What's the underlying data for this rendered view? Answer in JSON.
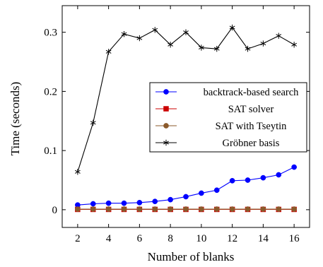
{
  "chart_data": {
    "type": "line",
    "title": "",
    "xlabel": "Number of blanks",
    "ylabel": "Time (seconds)",
    "xlim": [
      1,
      17
    ],
    "ylim": [
      -0.03,
      0.345
    ],
    "xticks": [
      2,
      4,
      6,
      8,
      10,
      12,
      14,
      16
    ],
    "yticks": [
      0,
      0.1,
      0.2,
      0.3
    ],
    "ytick_labels": [
      "0",
      "0.1",
      "0.2",
      "0.3"
    ],
    "grid": false,
    "legend_position": "center-right",
    "x": [
      2,
      3,
      4,
      5,
      6,
      7,
      8,
      9,
      10,
      11,
      12,
      13,
      14,
      15,
      16
    ],
    "series": [
      {
        "name": "backtrack-based search",
        "color": "#0000ff",
        "marker": "circle",
        "values": [
          0.008,
          0.01,
          0.011,
          0.011,
          0.012,
          0.014,
          0.017,
          0.022,
          0.028,
          0.033,
          0.049,
          0.05,
          0.054,
          0.059,
          0.072
        ]
      },
      {
        "name": "SAT solver",
        "color": "#cc0000",
        "marker": "square",
        "values": [
          0.0005,
          0.0005,
          0.0005,
          0.0005,
          0.0005,
          0.0005,
          0.0005,
          0.0005,
          0.0005,
          0.0005,
          0.0005,
          0.0005,
          0.0005,
          0.0005,
          0.0005
        ]
      },
      {
        "name": "SAT with Tseytin",
        "color": "#8b5a2b",
        "marker": "circle",
        "values": [
          0.001,
          0.001,
          0.001,
          0.001,
          0.001,
          0.001,
          0.001,
          0.001,
          0.001,
          0.001,
          0.001,
          0.001,
          0.001,
          0.001,
          0.001
        ]
      },
      {
        "name": "Gröbner basis",
        "color": "#000000",
        "marker": "star",
        "values": [
          0.064,
          0.147,
          0.267,
          0.297,
          0.29,
          0.304,
          0.279,
          0.3,
          0.274,
          0.272,
          0.308,
          0.272,
          0.281,
          0.294,
          0.279
        ]
      }
    ]
  }
}
